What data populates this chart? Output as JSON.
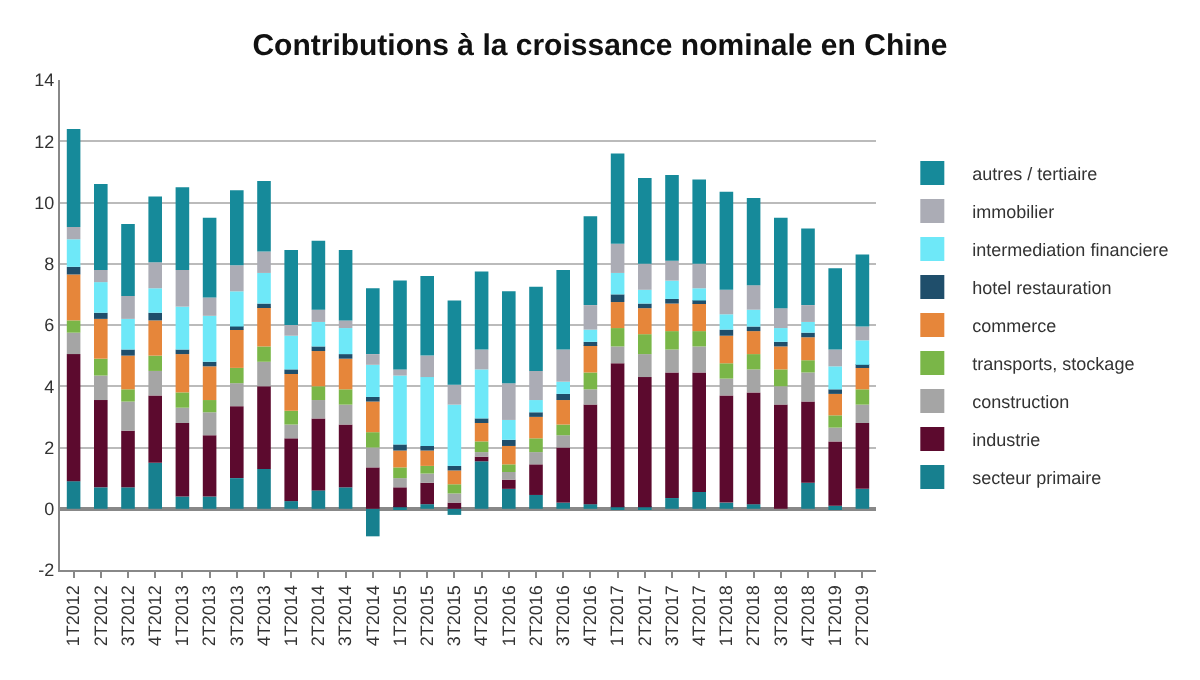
{
  "chart_data": {
    "type": "bar",
    "title": "Contributions à la croissance nominale en Chine",
    "stacked": true,
    "legend": "right",
    "grid": "y",
    "categories": [
      "1T2012",
      "2T2012",
      "3T2012",
      "4T2012",
      "1T2013",
      "2T2013",
      "3T2013",
      "4T2013",
      "1T2014",
      "2T2014",
      "3T2014",
      "4T2014",
      "1T2015",
      "2T2015",
      "3T2015",
      "4T2015",
      "1T2016",
      "2T2016",
      "3T2016",
      "4T2016",
      "1T2017",
      "2T2017",
      "3T2017",
      "4T2017",
      "1T2018",
      "2T2018",
      "3T2018",
      "4T2018",
      "1T2019",
      "2T2019"
    ],
    "ylim": [
      -2,
      14
    ],
    "yticks": [
      -2,
      0,
      2,
      4,
      6,
      8,
      10,
      12,
      14
    ],
    "series": [
      {
        "name": "secteur primaire",
        "color": "#17808f",
        "values": [
          0.9,
          0.7,
          0.7,
          1.5,
          0.4,
          0.4,
          1.0,
          1.3,
          0.25,
          0.6,
          0.7,
          -0.9,
          0.05,
          0.15,
          -0.2,
          1.55,
          0.65,
          0.45,
          0.2,
          0.15,
          0.05,
          0.05,
          0.35,
          0.55,
          0.2,
          0.15,
          0.0,
          0.85,
          0.1,
          0.65
        ]
      },
      {
        "name": "industrie",
        "color": "#5c0a2e",
        "values": [
          4.15,
          2.85,
          1.85,
          2.2,
          2.4,
          2.0,
          2.35,
          2.7,
          2.05,
          2.35,
          2.05,
          1.35,
          0.65,
          0.7,
          0.2,
          0.15,
          0.3,
          1.0,
          1.8,
          3.25,
          4.7,
          4.25,
          4.1,
          3.9,
          3.5,
          3.65,
          3.4,
          2.65,
          2.1,
          2.15
        ]
      },
      {
        "name": "construction",
        "color": "#a5a5a5",
        "values": [
          0.7,
          0.8,
          0.95,
          0.8,
          0.5,
          0.75,
          0.75,
          0.8,
          0.45,
          0.6,
          0.65,
          0.65,
          0.3,
          0.3,
          0.3,
          0.15,
          0.25,
          0.4,
          0.4,
          0.5,
          0.55,
          0.75,
          0.75,
          0.85,
          0.55,
          0.75,
          0.6,
          0.95,
          0.45,
          0.6
        ]
      },
      {
        "name": "transports, stockage",
        "color": "#7ab648",
        "values": [
          0.4,
          0.55,
          0.4,
          0.5,
          0.5,
          0.4,
          0.5,
          0.5,
          0.45,
          0.45,
          0.5,
          0.5,
          0.35,
          0.25,
          0.3,
          0.35,
          0.25,
          0.45,
          0.35,
          0.55,
          0.6,
          0.65,
          0.6,
          0.5,
          0.5,
          0.5,
          0.55,
          0.4,
          0.4,
          0.5
        ]
      },
      {
        "name": "commerce",
        "color": "#e6863a",
        "values": [
          1.5,
          1.3,
          1.1,
          1.15,
          1.25,
          1.1,
          1.25,
          1.3,
          1.2,
          1.15,
          1.0,
          1.0,
          0.55,
          0.5,
          0.45,
          0.6,
          0.6,
          0.7,
          0.8,
          0.9,
          0.85,
          0.85,
          0.9,
          0.9,
          0.9,
          0.75,
          0.75,
          0.75,
          0.7,
          0.7
        ]
      },
      {
        "name": "hotel restauration",
        "color": "#1f4e6b",
        "values": [
          0.25,
          0.2,
          0.2,
          0.25,
          0.15,
          0.15,
          0.1,
          0.1,
          0.15,
          0.15,
          0.15,
          0.15,
          0.2,
          0.15,
          0.15,
          0.15,
          0.2,
          0.15,
          0.2,
          0.1,
          0.25,
          0.15,
          0.15,
          0.1,
          0.2,
          0.15,
          0.15,
          0.15,
          0.15,
          0.1
        ]
      },
      {
        "name": "intermediation financiere",
        "color": "#6ee8f8",
        "values": [
          0.9,
          1.0,
          1.0,
          0.8,
          1.4,
          1.5,
          1.15,
          1.0,
          1.1,
          0.8,
          0.85,
          1.05,
          2.25,
          2.25,
          2.0,
          1.6,
          0.65,
          0.4,
          0.4,
          0.4,
          0.7,
          0.45,
          0.6,
          0.4,
          0.5,
          0.55,
          0.45,
          0.35,
          0.75,
          0.8
        ]
      },
      {
        "name": "immobilier",
        "color": "#abacb5",
        "values": [
          0.4,
          0.4,
          0.75,
          0.85,
          1.2,
          0.6,
          0.85,
          0.7,
          0.35,
          0.4,
          0.25,
          0.35,
          0.2,
          0.7,
          0.65,
          0.65,
          1.2,
          0.95,
          1.05,
          0.8,
          0.95,
          0.85,
          0.65,
          0.8,
          0.8,
          0.8,
          0.65,
          0.55,
          0.55,
          0.45
        ]
      },
      {
        "name": "autres / tertiaire",
        "color": "#168a9a",
        "values": [
          3.2,
          2.8,
          2.35,
          2.15,
          2.7,
          2.6,
          2.45,
          2.3,
          2.45,
          2.25,
          2.3,
          2.15,
          2.9,
          2.6,
          2.75,
          2.55,
          3.0,
          2.75,
          2.6,
          2.9,
          2.95,
          2.8,
          2.8,
          2.75,
          3.2,
          2.85,
          2.95,
          2.5,
          2.65,
          2.35
        ]
      }
    ]
  }
}
